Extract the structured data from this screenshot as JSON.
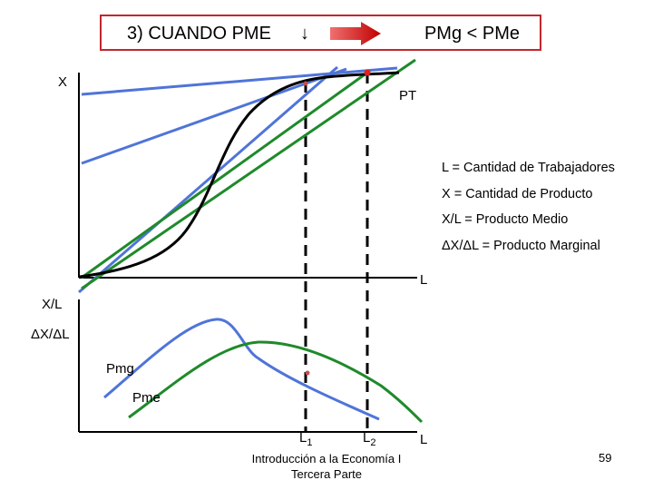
{
  "header": {
    "left_text": "3) CUANDO PME",
    "down_arrow": "↓",
    "right_text": "PMg < PMe"
  },
  "top_chart": {
    "y_label": "X",
    "x_label": "L",
    "curve_label": "PT"
  },
  "legend": {
    "line1": "L = Cantidad de Trabajadores",
    "line2": "X = Cantidad de Producto",
    "line3": "X/L = Producto Medio",
    "line4": "ΔX/ΔL = Producto Marginal"
  },
  "bottom_chart": {
    "y_label_1": "X/L",
    "y_label_2": "ΔX/ΔL",
    "pmg_label": "Pmg",
    "pme_label": "Pme",
    "x_label": "L",
    "l1_label": "L",
    "l1_sub": "1",
    "l2_label": "L",
    "l2_sub": "2"
  },
  "footer": {
    "line1": "Introducción a la Economía I",
    "line2": "Tercera Parte",
    "page": "59"
  },
  "colors": {
    "frame": "#c0272d",
    "blue": "#4f74d9",
    "green": "#1f8a2a",
    "black": "#000000",
    "arrow_red": "#e02020"
  }
}
